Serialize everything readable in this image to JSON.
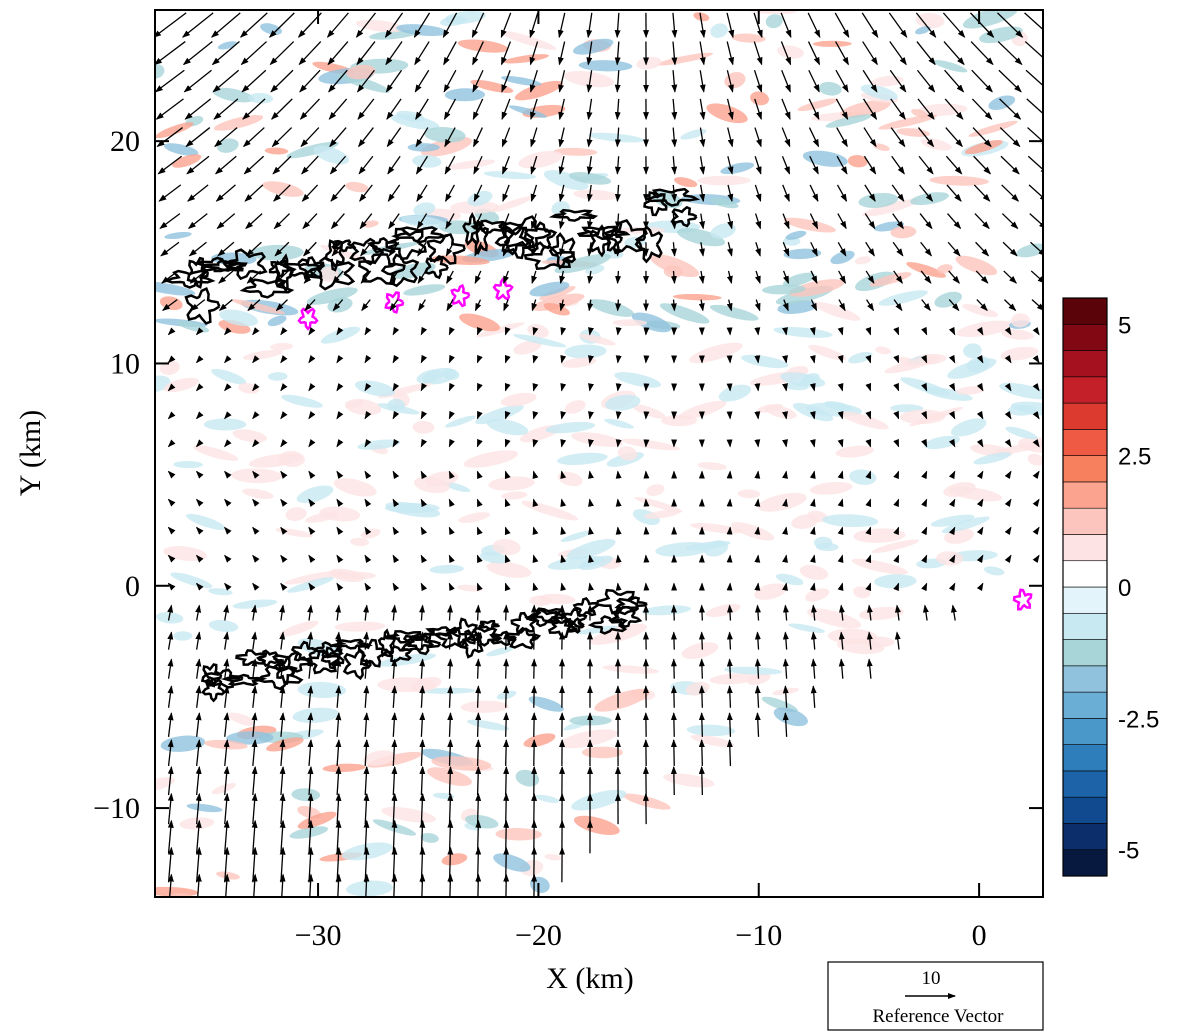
{
  "chart_data": {
    "type": "vector-field",
    "x_label": "X (km)",
    "y_label": "Y (km)",
    "xlim": [
      -37.4,
      2.9
    ],
    "ylim": [
      -14,
      25.9
    ],
    "xticks": [
      {
        "value": -30,
        "label": "−30"
      },
      {
        "value": -20,
        "label": "−20"
      },
      {
        "value": -10,
        "label": "−10"
      },
      0
    ],
    "yticks": [
      {
        "value": -10,
        "label": "−10"
      },
      0,
      10,
      20
    ],
    "colorbar": {
      "lim": [
        -5.5,
        5.5
      ],
      "ticks": [
        -5,
        -2.5,
        0,
        2.5,
        5
      ],
      "colors": [
        "#08193f",
        "#0c2f6b",
        "#124a8f",
        "#1c63a8",
        "#2e7ebb",
        "#4a97c9",
        "#6aaed6",
        "#90c2dd",
        "#a8d5d8",
        "#c8e8f2",
        "#e3f4fa",
        "#ffffff",
        "#fde3e3",
        "#fcc5bd",
        "#fba38f",
        "#f7805f",
        "#ee5a44",
        "#dc3a2f",
        "#c4202a",
        "#a5111f",
        "#820913",
        "#5a0309"
      ]
    },
    "reference_vector": {
      "value": 10,
      "label": "Reference Vector"
    }
  }
}
